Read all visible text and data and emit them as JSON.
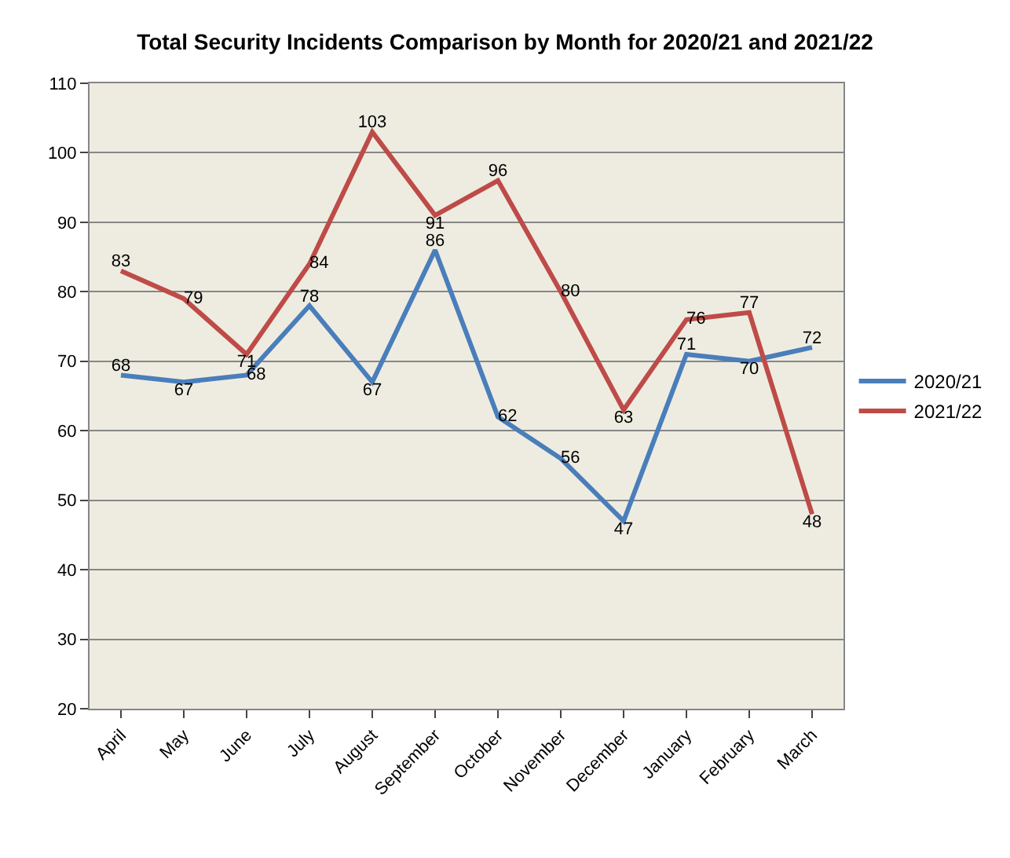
{
  "chart_data": {
    "type": "line",
    "title": "Total Security Incidents Comparison by Month for 2020/21 and 2021/22",
    "categories": [
      "April",
      "May",
      "June",
      "July",
      "August",
      "September",
      "October",
      "November",
      "December",
      "January",
      "February",
      "March"
    ],
    "series": [
      {
        "name": "2020/21",
        "color": "#4a7ebb",
        "values": [
          68,
          67,
          68,
          78,
          67,
          86,
          62,
          56,
          47,
          71,
          70,
          72
        ]
      },
      {
        "name": "2021/22",
        "color": "#be4b48",
        "values": [
          83,
          79,
          71,
          84,
          103,
          91,
          96,
          80,
          63,
          76,
          77,
          48
        ]
      }
    ],
    "ylim": [
      20,
      110
    ],
    "yticks": [
      20,
      30,
      40,
      50,
      60,
      70,
      80,
      90,
      100,
      110
    ],
    "grid": "y",
    "legend": "right",
    "marker": "none",
    "line_style": "solid",
    "data_labels": true
  }
}
